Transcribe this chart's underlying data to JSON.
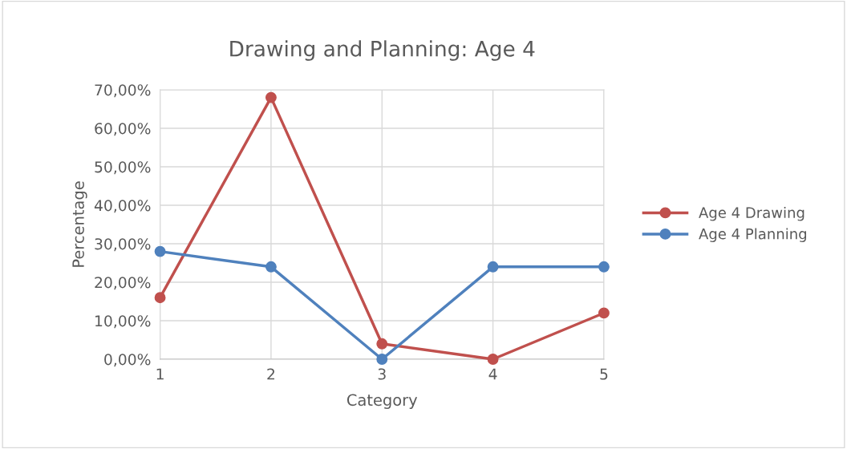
{
  "chart_data": {
    "type": "line",
    "title": "Drawing and Planning: Age 4",
    "xlabel": "Category",
    "ylabel": "Percentage",
    "categories": [
      "1",
      "2",
      "3",
      "4",
      "5"
    ],
    "series": [
      {
        "name": "Age 4 Drawing",
        "color": "#c0504d",
        "values": [
          16,
          68,
          4,
          0,
          12
        ]
      },
      {
        "name": "Age 4 Planning",
        "color": "#4f81bd",
        "values": [
          28,
          24,
          0,
          24,
          24
        ]
      }
    ],
    "ylim": [
      0,
      70
    ],
    "yticks": [
      {
        "value": 0,
        "label": "0,00%"
      },
      {
        "value": 10,
        "label": "10,00%"
      },
      {
        "value": 20,
        "label": "20,00%"
      },
      {
        "value": 30,
        "label": "30,00%"
      },
      {
        "value": 40,
        "label": "40,00%"
      },
      {
        "value": 50,
        "label": "50,00%"
      },
      {
        "value": 60,
        "label": "60,00%"
      },
      {
        "value": 70,
        "label": "70,00%"
      }
    ],
    "grid": true,
    "legend": "right",
    "marker": "circle",
    "line_style": "solid"
  }
}
